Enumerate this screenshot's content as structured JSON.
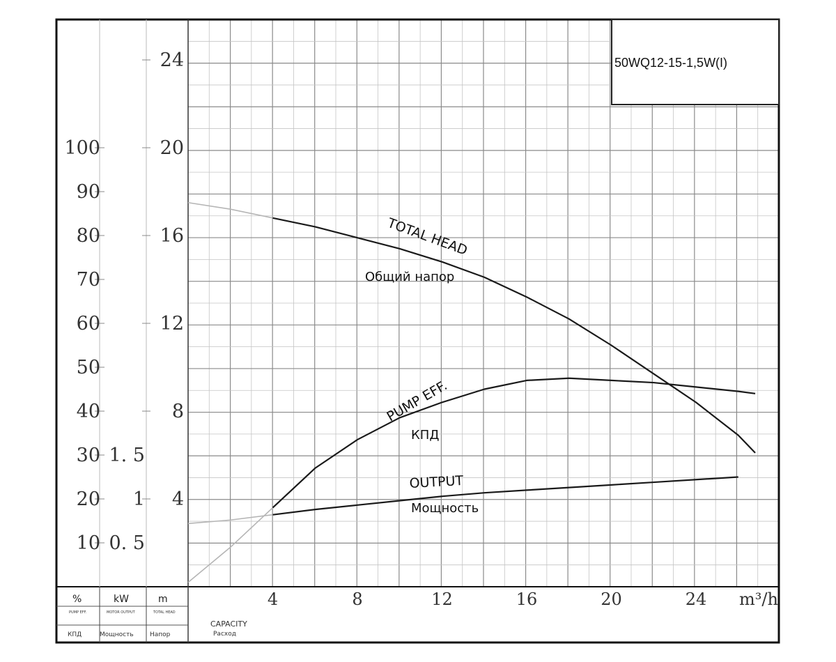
{
  "chart_data": {
    "type": "line",
    "model": "50WQ12-15-1,5W(I)",
    "x_axis": {
      "label": "CAPACITY",
      "label_ru": "Расход",
      "unit": "m³/h",
      "ticks": [
        4,
        8,
        12,
        16,
        20,
        24
      ],
      "range": [
        0,
        28
      ]
    },
    "axes": {
      "efficiency": {
        "unit": "%",
        "caption": "PUMP EFF.",
        "caption_ru": "КПД",
        "ticks": [
          10,
          20,
          30,
          40,
          50,
          60,
          70,
          80,
          90,
          100
        ]
      },
      "power": {
        "unit": "kW",
        "caption": "MOTOR OUTPUT",
        "caption_ru": "Мощность",
        "ticks": [
          "0.5",
          "1",
          "1.5"
        ]
      },
      "head": {
        "unit": "m",
        "caption": "TOTAL HEAD",
        "caption_ru": "Напор",
        "ticks": [
          4,
          8,
          12,
          16,
          20,
          24
        ],
        "range": [
          0,
          27
        ]
      }
    },
    "series": [
      {
        "name": "TOTAL HEAD",
        "name_ru": "Общий напор",
        "axis": "head",
        "x": [
          0,
          2,
          4,
          6,
          8,
          10,
          12,
          14,
          16,
          18,
          20,
          22,
          24,
          26,
          26.8
        ],
        "y": [
          17.5,
          17.2,
          16.8,
          16.4,
          15.9,
          15.4,
          14.8,
          14.1,
          13.2,
          12.2,
          11.0,
          9.7,
          8.4,
          6.9,
          6.1
        ]
      },
      {
        "name": "PUMP EFF.",
        "name_ru": "КПД",
        "axis": "efficiency",
        "x": [
          0,
          2,
          4,
          6,
          8,
          10,
          12,
          14,
          16,
          18,
          20,
          22,
          24,
          26,
          26.8
        ],
        "y": [
          1,
          9,
          18,
          27,
          33.5,
          38.5,
          42,
          45,
          47,
          47.5,
          47,
          46.5,
          45.5,
          44.5,
          44
        ]
      },
      {
        "name": "OUTPUT",
        "name_ru": "Мощность",
        "axis": "power",
        "x": [
          0,
          2,
          4,
          6,
          8,
          10,
          12,
          14,
          16,
          18,
          20,
          22,
          24,
          26
        ],
        "y": [
          0.72,
          0.76,
          0.82,
          0.88,
          0.93,
          0.98,
          1.03,
          1.07,
          1.1,
          1.13,
          1.16,
          1.19,
          1.22,
          1.25
        ]
      }
    ],
    "labels": {
      "head_en": "TOTAL HEAD",
      "head_ru": "Общий напор",
      "eff_en": "PUMP EFF.",
      "eff_ru": "КПД",
      "out_en": "OUTPUT",
      "out_ru": "Мощность"
    },
    "footer": {
      "eff_unit": "%",
      "eff_caption": "PUMP EFF.",
      "eff_caption_ru": "КПД",
      "power_unit": "kW",
      "power_caption": "MOTOR OUTPUT",
      "power_caption_ru": "Мощность",
      "head_unit": "m",
      "head_caption": "TOTAL HEAD",
      "head_caption_ru": "Напор",
      "capacity": "CAPACITY",
      "capacity_ru": "Расход"
    },
    "grid": true
  }
}
